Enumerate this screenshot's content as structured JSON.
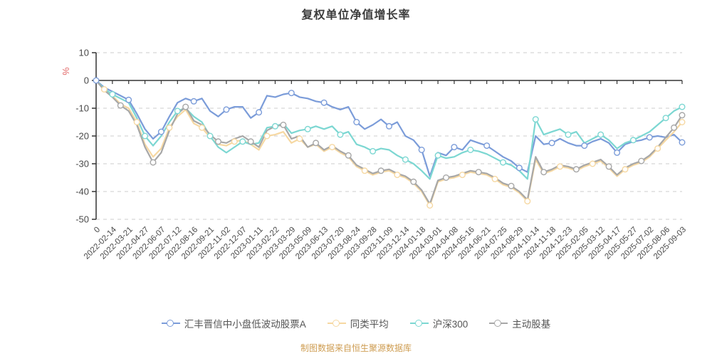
{
  "title": "复权单位净值增长率",
  "source_note": "制图数据来自恒生聚源数据库",
  "chart_data": {
    "type": "line",
    "title": "复权单位净值增长率",
    "y_unit": "%",
    "ylim": [
      -50,
      10
    ],
    "y_ticks": [
      10,
      0,
      -10,
      -20,
      -30,
      -40,
      -50
    ],
    "grid": "dashed-horizontal",
    "legend_position": "bottom",
    "axis_color": "#333333",
    "grid_color": "#cccccc",
    "y_unit_color": "#e26868",
    "tick_label_color": "#4a4a4a",
    "samples_per_interval": 2,
    "x_labels": [
      "0",
      "2022-02-14",
      "2022-03-21",
      "2022-04-27",
      "2022-06-07",
      "2022-07-12",
      "2022-08-16",
      "2022-09-21",
      "2022-11-02",
      "2022-12-07",
      "2023-01-11",
      "2023-02-22",
      "2023-03-29",
      "2023-05-09",
      "2023-06-13",
      "2023-07-20",
      "2023-08-24",
      "2023-09-28",
      "2023-11-09",
      "2023-12-14",
      "2024-01-18",
      "2024-03-01",
      "2024-04-08",
      "2024-05-16",
      "2024-06-21",
      "2024-07-25",
      "2024-08-29",
      "2024-10-14",
      "2024-11-18",
      "2024-12-23",
      "2025-02-05",
      "2025-03-12",
      "2025-04-17",
      "2025-05-27",
      "2025-07-02",
      "2025-08-06",
      "2025-09-03"
    ],
    "series": [
      {
        "name": "汇丰晋信中小盘低波动股票A",
        "color": "#7b9cd9",
        "values": [
          0,
          -2.5,
          -4,
          -5.5,
          -7,
          -12,
          -17.5,
          -21,
          -18.5,
          -13,
          -8,
          -6.5,
          -7.5,
          -6.5,
          -11,
          -13,
          -10.5,
          -9.5,
          -9.5,
          -13.5,
          -11.5,
          -5.5,
          -6,
          -5,
          -4.5,
          -6,
          -6.5,
          -7.5,
          -8,
          -9.5,
          -10.5,
          -9.5,
          -15,
          -17.5,
          -16,
          -14,
          -16.5,
          -15,
          -20,
          -21.5,
          -25,
          -34.5,
          -26,
          -27,
          -24,
          -25,
          -21.5,
          -22.5,
          -23.5,
          -25.5,
          -27.5,
          -29,
          -31.5,
          -33,
          -20,
          -23,
          -22.5,
          -21,
          -22.5,
          -23.5,
          -23.5,
          -22,
          -21,
          -22.5,
          -26,
          -23,
          -22,
          -21.5,
          -20.5,
          -20,
          -20.5,
          -19.5,
          -22.3
        ]
      },
      {
        "name": "同类平均",
        "color": "#f6d8a2",
        "values": [
          0,
          -3.2,
          -5.5,
          -8.5,
          -10,
          -15,
          -23,
          -27.5,
          -24.5,
          -17,
          -13,
          -10.5,
          -15.5,
          -17,
          -20.5,
          -23,
          -23.5,
          -22,
          -21.5,
          -23,
          -25,
          -20,
          -19.5,
          -18.5,
          -22.5,
          -21,
          -24,
          -23,
          -25.5,
          -24,
          -26,
          -27.5,
          -31,
          -32.5,
          -34,
          -33,
          -32.5,
          -34,
          -35,
          -37,
          -40,
          -45,
          -36.5,
          -35.5,
          -35,
          -34,
          -33,
          -33.5,
          -34,
          -35.5,
          -37.5,
          -38.5,
          -40.5,
          -43.5,
          -28.5,
          -33.5,
          -32.5,
          -31,
          -31.5,
          -32.5,
          -31,
          -30,
          -29,
          -31.5,
          -34.5,
          -32,
          -30.5,
          -29.5,
          -27.5,
          -24.5,
          -21.5,
          -18.5,
          -15
        ]
      },
      {
        "name": "沪深300",
        "color": "#7cd7d2",
        "values": [
          0,
          -3,
          -5,
          -6.5,
          -8,
          -13.5,
          -20,
          -23.5,
          -20,
          -15,
          -11,
          -10,
          -13,
          -15,
          -20,
          -24,
          -26,
          -24,
          -22,
          -23,
          -22.5,
          -17,
          -16.5,
          -15.5,
          -19,
          -18,
          -17.5,
          -16.5,
          -17.5,
          -16.5,
          -19.5,
          -18.5,
          -23,
          -24,
          -25.5,
          -24.5,
          -25,
          -27,
          -28.5,
          -30,
          -32.5,
          -35.5,
          -27,
          -28,
          -27.5,
          -26,
          -25,
          -25.5,
          -26.5,
          -28,
          -29.5,
          -30.5,
          -32.5,
          -35.5,
          -14,
          -19.5,
          -18.5,
          -17.5,
          -19.5,
          -18.5,
          -22.5,
          -21,
          -19.5,
          -21.5,
          -24.5,
          -22.5,
          -21.5,
          -20,
          -18.5,
          -16,
          -13.5,
          -11,
          -9.5
        ]
      },
      {
        "name": "主动股基",
        "color": "#a7a7a7",
        "values": [
          0,
          -3.5,
          -6,
          -9,
          -11,
          -16,
          -24,
          -29.5,
          -26,
          -18,
          -12,
          -9.5,
          -14.5,
          -16,
          -19.5,
          -22,
          -22.5,
          -21,
          -20,
          -22,
          -24,
          -18,
          -16.5,
          -16,
          -21,
          -20,
          -24,
          -22.5,
          -25,
          -23.5,
          -25.5,
          -27,
          -30.5,
          -32,
          -33.5,
          -32.5,
          -32,
          -33.5,
          -34.5,
          -36.5,
          -39.5,
          -44.5,
          -36,
          -35,
          -34.5,
          -33.5,
          -32.5,
          -33,
          -33.5,
          -35,
          -37,
          -38,
          -40,
          -43,
          -27.5,
          -33,
          -32,
          -30.5,
          -31,
          -32,
          -30.5,
          -29.5,
          -28.5,
          -31,
          -34,
          -31.5,
          -30,
          -29,
          -27,
          -24,
          -20.5,
          -17,
          -12.5
        ]
      }
    ]
  }
}
